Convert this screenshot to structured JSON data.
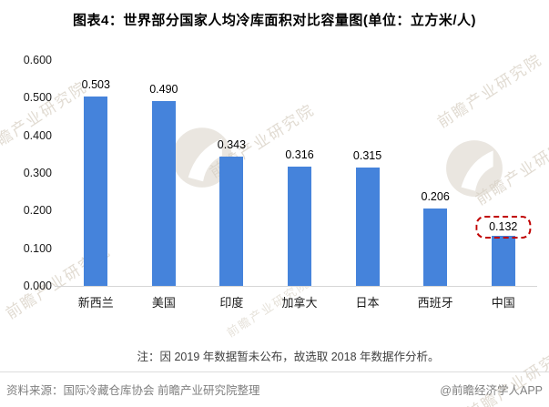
{
  "page": {
    "title": "图表4：世界部分国家人均冷库面积对比容量图(单位：立方米/人)"
  },
  "chart_data": {
    "type": "bar",
    "title": "图表4：世界部分国家人均冷库面积对比容量图(单位：立方米/人)",
    "unit": "立方米/人",
    "categories": [
      "新西兰",
      "美国",
      "印度",
      "加拿大",
      "日本",
      "西班牙",
      "中国"
    ],
    "values": [
      0.503,
      0.49,
      0.343,
      0.316,
      0.315,
      0.206,
      0.132
    ],
    "value_labels": [
      "0.503",
      "0.490",
      "0.343",
      "0.316",
      "0.315",
      "0.206",
      "0.132"
    ],
    "ylim": [
      0,
      0.6
    ],
    "yticks": [
      "0.000",
      "0.100",
      "0.200",
      "0.300",
      "0.400",
      "0.500",
      "0.600"
    ],
    "grid": false,
    "legend": false,
    "bar_color": "#4583DB",
    "axis_color": "#d6d6d6",
    "highlight": {
      "index": 6,
      "style": "red-dashed-box",
      "color": "#C00000"
    }
  },
  "note": "注：因 2019 年数据暂未公布，故选取 2018 年数据作分析。",
  "footer": {
    "source": "资料来源：国际冷藏仓库协会 前瞻产业研究院整理",
    "credit": "@前瞻经济学人APP"
  },
  "watermark": {
    "text": "前瞻产业研究院"
  }
}
